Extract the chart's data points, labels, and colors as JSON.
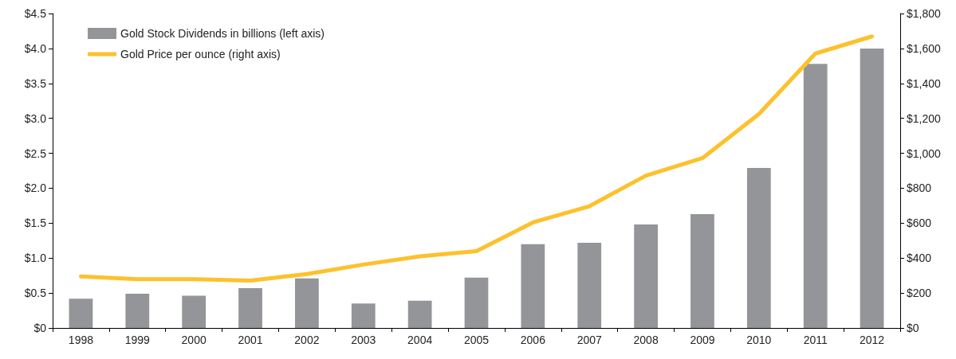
{
  "chart_data": {
    "type": "bar",
    "categories": [
      "1998",
      "1999",
      "2000",
      "2001",
      "2002",
      "2003",
      "2004",
      "2005",
      "2006",
      "2007",
      "2008",
      "2009",
      "2010",
      "2011",
      "2012"
    ],
    "series": [
      {
        "name": "Gold Stock Dividends in billions (left axis)",
        "color": "#939598",
        "values": [
          0.42,
          0.49,
          0.46,
          0.57,
          0.71,
          0.35,
          0.39,
          0.72,
          1.2,
          1.22,
          1.48,
          1.63,
          2.29,
          3.78,
          4.0
        ]
      },
      {
        "name": "Gold Price per ounce (right axis)",
        "type": "line",
        "axis": "y2",
        "color": "#fcc12d",
        "values": [
          295,
          279,
          279,
          271,
          309,
          363,
          410,
          440,
          604,
          697,
          872,
          972,
          1225,
          1571,
          1669
        ]
      }
    ],
    "ylim": [
      0,
      4.5
    ],
    "yticks": [
      {
        "value": 0,
        "label": "$0"
      },
      {
        "value": 0.5,
        "label": "$0.5"
      },
      {
        "value": 1,
        "label": "$1.0"
      },
      {
        "value": 1.5,
        "label": "$1.5"
      },
      {
        "value": 2,
        "label": "$2.0"
      },
      {
        "value": 2.5,
        "label": "$2.5"
      },
      {
        "value": 3,
        "label": "$3.0"
      },
      {
        "value": 3.5,
        "label": "$3.5"
      },
      {
        "value": 4,
        "label": "$4.0"
      },
      {
        "value": 4.5,
        "label": "$4.5"
      }
    ],
    "y2lim": [
      0,
      1800
    ],
    "y2ticks": [
      {
        "value": 0,
        "label": "$0"
      },
      {
        "value": 200,
        "label": "$200"
      },
      {
        "value": 400,
        "label": "$400"
      },
      {
        "value": 600,
        "label": "$600"
      },
      {
        "value": 800,
        "label": "$800"
      },
      {
        "value": 1000,
        "label": "$1,000"
      },
      {
        "value": 1200,
        "label": "$1,200"
      },
      {
        "value": 1400,
        "label": "$1,400"
      },
      {
        "value": 1600,
        "label": "$1,600"
      },
      {
        "value": 1800,
        "label": "$1,800"
      }
    ],
    "legend": "top left",
    "grid": false,
    "marker": "none",
    "line_style": "solid"
  }
}
